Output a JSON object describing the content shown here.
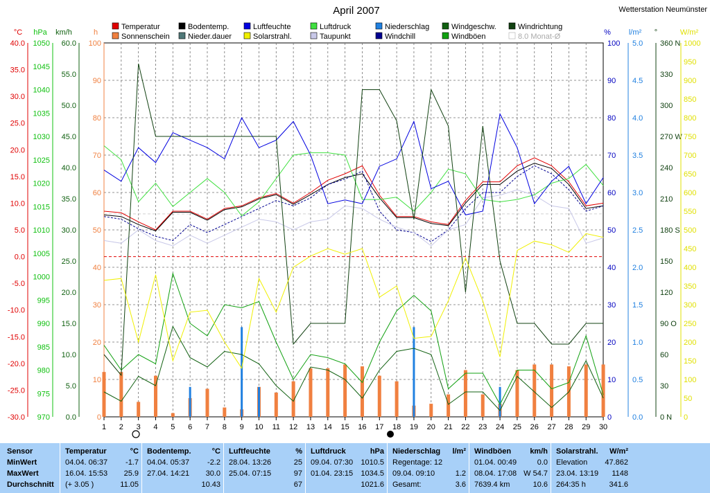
{
  "title": "April 2007",
  "station": "Wetterstation Neumünster",
  "legend": [
    {
      "label": "Temperatur",
      "color": "#e00000"
    },
    {
      "label": "Sonnenschein",
      "color": "#f08040"
    },
    {
      "label": "Bodentemp.",
      "color": "#000000"
    },
    {
      "label": "Nieder.dauer",
      "color": "#507878"
    },
    {
      "label": "Luftfeuchte",
      "color": "#0000e0"
    },
    {
      "label": "Solarstrahl.",
      "color": "#f0f000"
    },
    {
      "label": "Luftdruck",
      "color": "#40e040"
    },
    {
      "label": "Taupunkt",
      "color": "#c8c8e8"
    },
    {
      "label": "Niederschlag",
      "color": "#2080e0"
    },
    {
      "label": "Windchill",
      "color": "#000090"
    },
    {
      "label": "Windgeschw.",
      "color": "#106010"
    },
    {
      "label": "Windböen",
      "color": "#10a010"
    },
    {
      "label": "Windrichtung",
      "color": "#104010"
    },
    {
      "label": "8.0 Monat-Ø",
      "color": "#d0d0d0"
    }
  ],
  "axes": {
    "temp": {
      "unit": "°C",
      "color": "#e00000",
      "ticks": [
        "40.0",
        "35.0",
        "30.0",
        "25.0",
        "20.0",
        "15.0",
        "10.0",
        "5.0",
        "0.0",
        "-5.0",
        "-10.0",
        "-15.0",
        "-20.0",
        "-25.0",
        "-30.0"
      ]
    },
    "press": {
      "unit": "hPa",
      "color": "#10c010",
      "ticks": [
        "1050",
        "1045",
        "1040",
        "1035",
        "1030",
        "1025",
        "1020",
        "1015",
        "1010",
        "1005",
        "1000",
        "995",
        "990",
        "985",
        "980",
        "975",
        "970"
      ]
    },
    "wind": {
      "unit": "km/h",
      "color": "#106010",
      "ticks": [
        "60.0",
        "55.0",
        "50.0",
        "45.0",
        "40.0",
        "35.0",
        "30.0",
        "25.0",
        "20.0",
        "15.0",
        "10.0",
        "5.0",
        "0.0"
      ]
    },
    "sun": {
      "unit": "h",
      "color": "#f08040",
      "ticks": [
        "100",
        "90",
        "80",
        "70",
        "60",
        "50",
        "40",
        "30",
        "20",
        "10",
        "0"
      ]
    },
    "hum": {
      "unit": "%",
      "color": "#0000c0",
      "ticks": [
        "100",
        "90",
        "80",
        "70",
        "60",
        "50",
        "40",
        "30",
        "20",
        "10",
        "0"
      ]
    },
    "rain": {
      "unit": "l/m²",
      "color": "#2080e0",
      "ticks": [
        "5.0",
        "4.5",
        "4.0",
        "3.5",
        "3.0",
        "2.5",
        "2.0",
        "1.5",
        "1.0",
        "0.5",
        "0.0"
      ]
    },
    "dir": {
      "unit": "°",
      "color": "#104010",
      "ticks": [
        "360 N",
        "330",
        "300",
        "270 W",
        "240",
        "210",
        "180 S",
        "150",
        "120",
        "90 O",
        "60",
        "30",
        "0 N"
      ]
    },
    "solar": {
      "unit": "W/m²",
      "color": "#e0e000",
      "ticks": [
        "1000",
        "950",
        "900",
        "850",
        "800",
        "750",
        "700",
        "650",
        "600",
        "550",
        "500",
        "450",
        "400",
        "350",
        "300",
        "250",
        "200",
        "150",
        "100",
        "50",
        "0"
      ]
    }
  },
  "x_ticks": [
    "1",
    "2",
    "3",
    "4",
    "5",
    "6",
    "7",
    "8",
    "9",
    "10",
    "11",
    "12",
    "13",
    "14",
    "15",
    "16",
    "17",
    "18",
    "19",
    "20",
    "21",
    "22",
    "23",
    "24",
    "25",
    "26",
    "27",
    "28",
    "29",
    "30"
  ],
  "chart_data": {
    "type": "line",
    "title": "April 2007",
    "x": [
      1,
      2,
      3,
      4,
      5,
      6,
      7,
      8,
      9,
      10,
      11,
      12,
      13,
      14,
      15,
      16,
      17,
      18,
      19,
      20,
      21,
      22,
      23,
      24,
      25,
      26,
      27,
      28,
      29,
      30
    ],
    "series": [
      {
        "name": "Temperatur",
        "unit": "°C",
        "color": "#e00000",
        "values": [
          8.5,
          8.2,
          6.5,
          5.0,
          8.5,
          8.5,
          7.0,
          9.0,
          9.5,
          11.0,
          11.8,
          10.0,
          12.0,
          14.3,
          15.5,
          17.0,
          11.5,
          7.5,
          7.5,
          6.5,
          6.0,
          10.5,
          14.0,
          14.0,
          17.0,
          18.5,
          17.0,
          14.0,
          9.5,
          10.0
        ]
      },
      {
        "name": "Bodentemp.",
        "unit": "°C",
        "color": "#000000",
        "values": [
          7.8,
          7.5,
          6.0,
          4.8,
          8.3,
          8.3,
          6.8,
          8.8,
          9.3,
          10.8,
          11.6,
          9.8,
          11.6,
          13.5,
          14.8,
          15.5,
          11.0,
          7.3,
          7.3,
          6.2,
          5.8,
          10.0,
          13.5,
          13.5,
          16.0,
          17.5,
          16.5,
          13.5,
          9.0,
          9.5
        ]
      },
      {
        "name": "Windchill",
        "unit": "°C",
        "color": "#000090",
        "values": [
          7.5,
          7.0,
          5.2,
          3.8,
          3.0,
          6.0,
          4.5,
          6.0,
          7.5,
          9.0,
          10.5,
          9.5,
          11.0,
          13.5,
          14.5,
          16.0,
          8.5,
          5.0,
          4.5,
          2.8,
          5.0,
          9.0,
          12.0,
          12.0,
          15.0,
          17.0,
          15.5,
          12.5,
          8.5,
          9.5
        ]
      },
      {
        "name": "Taupunkt",
        "unit": "°C",
        "color": "#c8c8e8",
        "values": [
          3.0,
          2.5,
          5.0,
          3.0,
          2.0,
          4.0,
          2.5,
          4.0,
          5.5,
          7.0,
          6.5,
          5.0,
          6.5,
          7.0,
          9.5,
          9.0,
          7.0,
          5.5,
          4.5,
          2.0,
          5.0,
          6.0,
          11.0,
          11.5,
          12.5,
          11.5,
          9.5,
          9.0,
          2.5,
          3.5
        ]
      },
      {
        "name": "Luftdruck",
        "unit": "hPa",
        "color": "#40e040",
        "values": [
          1028,
          1025,
          1016,
          1020,
          1015,
          1018,
          1021,
          1018,
          1013,
          1016,
          1021,
          1026,
          1026.5,
          1026.5,
          1026,
          1016.5,
          1016.5,
          1017,
          1014,
          1018,
          1023,
          1022,
          1016.5,
          1016,
          1016.5,
          1017.5,
          1020,
          1021,
          1024,
          1019.5
        ]
      },
      {
        "name": "Luftfeuchte",
        "unit": "%",
        "color": "#0000e0",
        "values": [
          66,
          63,
          72,
          68,
          76,
          74,
          72,
          69,
          80,
          72,
          74,
          79,
          70,
          57,
          58,
          57,
          67,
          69,
          79,
          61,
          63,
          54,
          55,
          81,
          72,
          57,
          63,
          67,
          57,
          64
        ]
      },
      {
        "name": "Windgeschw.",
        "unit": "km/h",
        "color": "#106010",
        "values": [
          4.0,
          2.5,
          6.5,
          5.0,
          14.5,
          9.5,
          8.0,
          10.5,
          10.0,
          8.5,
          5.0,
          2.5,
          8.0,
          7.5,
          6.0,
          3.0,
          7.5,
          10.5,
          11.0,
          10.0,
          2.0,
          4.0,
          4.0,
          1.0,
          6.5,
          4.0,
          1.5,
          4.0,
          9.0,
          3.0
        ]
      },
      {
        "name": "Windböen",
        "unit": "km/h",
        "color": "#10a010",
        "values": [
          11.5,
          7.5,
          10.0,
          8.5,
          23.0,
          15.0,
          13.0,
          18.0,
          17.5,
          18.5,
          12.0,
          6.0,
          10.0,
          9.5,
          8.5,
          5.5,
          12.0,
          17.0,
          19.5,
          17.0,
          4.5,
          7.0,
          7.0,
          2.0,
          7.5,
          7.5,
          4.5,
          5.5,
          13.0,
          3.5
        ]
      },
      {
        "name": "Windrichtung",
        "unit": "°",
        "color": "#104010",
        "values": [
          60,
          40,
          340,
          270,
          270,
          270,
          270,
          270,
          270,
          270,
          270,
          70,
          90,
          90,
          90,
          315,
          315,
          285,
          190,
          315,
          280,
          120,
          280,
          150,
          90,
          90,
          70,
          70,
          90,
          90
        ]
      },
      {
        "name": "Solarstrahl.",
        "unit": "W/m²",
        "color": "#f0f000",
        "values": [
          365,
          370,
          200,
          380,
          150,
          280,
          285,
          200,
          130,
          370,
          280,
          400,
          430,
          450,
          435,
          450,
          320,
          350,
          210,
          215,
          310,
          425,
          310,
          160,
          445,
          470,
          460,
          440,
          490,
          480
        ]
      },
      {
        "name": "Sonnenschein",
        "unit": "h",
        "type": "bar",
        "color": "#f08040",
        "values": [
          12,
          12,
          4,
          11,
          1,
          5,
          7.5,
          2.5,
          2,
          8,
          6.5,
          9.5,
          13,
          13,
          14,
          13.5,
          11,
          9.5,
          3,
          3.5,
          6,
          12.5,
          6,
          3.5,
          12.5,
          14,
          14,
          13.5,
          14,
          14
        ]
      },
      {
        "name": "Niederschlag",
        "unit": "l/m²",
        "type": "bar",
        "color": "#2080e0",
        "values": [
          0,
          0,
          0,
          0,
          0,
          0.4,
          0,
          0,
          1.2,
          0.4,
          0,
          0,
          0,
          0,
          0,
          0,
          0,
          0,
          1.2,
          0,
          0,
          0,
          0,
          0.4,
          0,
          0,
          0,
          0,
          0,
          0
        ]
      }
    ],
    "reference_lines": [
      {
        "axis": "temp",
        "value": 0.0,
        "color": "#e00000",
        "style": "dashed"
      },
      {
        "axis": "temp",
        "value": 8.0,
        "label": "8.0 Monat-Ø",
        "color": "#d0d0d0",
        "style": "dashed"
      }
    ],
    "xlim": [
      1,
      30
    ],
    "ylim_temp": [
      -30,
      40
    ],
    "ylim_press": [
      970,
      1050
    ],
    "ylim_wind": [
      0,
      60
    ],
    "ylim_sun": [
      0,
      100
    ],
    "ylim_hum": [
      0,
      100
    ],
    "ylim_rain": [
      0,
      5
    ],
    "ylim_dir": [
      0,
      360
    ],
    "ylim_solar": [
      0,
      1000
    ],
    "grid": true
  },
  "stats": {
    "columns": [
      {
        "title": "Sensor",
        "unit": "",
        "rows": [
          [
            "MinWert",
            ""
          ],
          [
            "MaxWert",
            ""
          ],
          [
            "Durchschnitt",
            ""
          ]
        ]
      },
      {
        "title": "Temperatur",
        "unit": "°C",
        "rows": [
          [
            "04.04.  06:37",
            "-1.7"
          ],
          [
            "16.04.  15:53",
            "25.9"
          ],
          [
            "(+ 3.05 )",
            "11.05"
          ]
        ]
      },
      {
        "title": "Bodentemp.",
        "unit": "°C",
        "rows": [
          [
            "04.04.  05:37",
            "-2.2"
          ],
          [
            "27.04.  14:21",
            "30.0"
          ],
          [
            "",
            "10.43"
          ]
        ]
      },
      {
        "title": "Luftfeuchte",
        "unit": "%",
        "rows": [
          [
            "28.04.  13:26",
            "25"
          ],
          [
            "25.04.  07:15",
            "97"
          ],
          [
            "",
            "67"
          ]
        ]
      },
      {
        "title": "Luftdruck",
        "unit": "hPa",
        "rows": [
          [
            "09.04.  07:30",
            "1010.5"
          ],
          [
            "01.04.  23:15",
            "1034.5"
          ],
          [
            "",
            "1021.6"
          ]
        ]
      },
      {
        "title": "Niederschlag",
        "unit": "l/m²",
        "rows": [
          [
            "Regentage: 12",
            ""
          ],
          [
            "09.04.  09:10",
            "1.2"
          ],
          [
            "Gesamt:",
            "3.6"
          ]
        ]
      },
      {
        "title": "Windböen",
        "unit": "km/h",
        "rows": [
          [
            "01.04.  00:49",
            "0.0"
          ],
          [
            "08.04.  17:08",
            "W 54.7"
          ],
          [
            "7639.4 km",
            "10.6"
          ]
        ]
      },
      {
        "title": "Solarstrahl.",
        "unit": "W/m²",
        "rows": [
          [
            "Elevation",
            "47.862"
          ],
          [
            "23.04.  13:19",
            "1148"
          ],
          [
            "264:35 h",
            "341.6"
          ]
        ]
      }
    ]
  }
}
